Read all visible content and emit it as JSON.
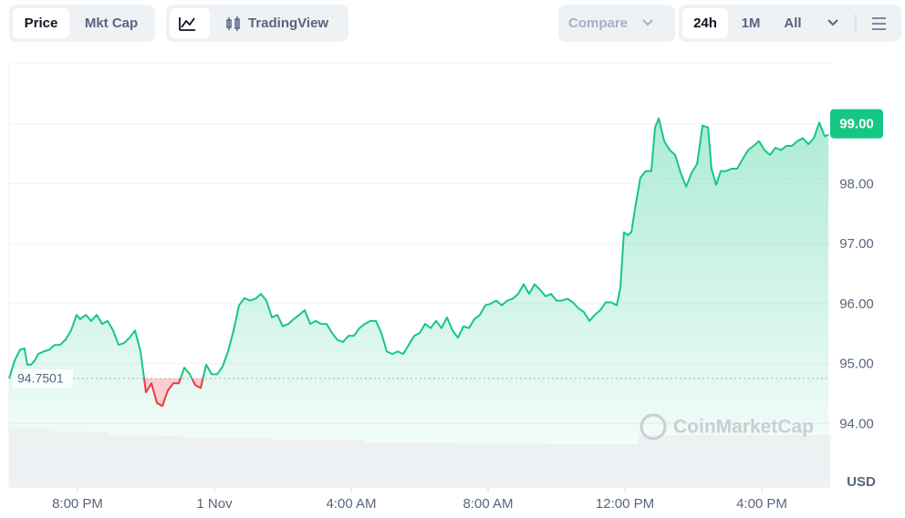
{
  "toolbar": {
    "price": "Price",
    "mkt_cap": "Mkt Cap",
    "tradingview": "TradingView",
    "compare": "Compare",
    "range_24h": "24h",
    "range_1m": "1M",
    "range_all": "All"
  },
  "chart_data": {
    "type": "line",
    "watermark": "CoinMarketCap",
    "y_unit": "USD",
    "x": [
      18.0,
      18.16,
      18.32,
      18.45,
      18.53,
      18.64,
      18.75,
      18.85,
      19.01,
      19.17,
      19.33,
      19.49,
      19.65,
      19.81,
      19.97,
      20.08,
      20.24,
      20.4,
      20.56,
      20.72,
      20.88,
      21.04,
      21.2,
      21.36,
      21.52,
      21.68,
      21.84,
      22.0,
      22.16,
      22.32,
      22.48,
      22.64,
      22.8,
      22.96,
      23.12,
      23.28,
      23.44,
      23.6,
      23.76,
      23.92,
      24.08,
      24.24,
      24.4,
      24.56,
      24.72,
      24.88,
      25.04,
      25.2,
      25.36,
      25.52,
      25.68,
      25.84,
      26.0,
      26.16,
      26.32,
      26.48,
      26.64,
      26.8,
      26.96,
      27.12,
      27.28,
      27.44,
      27.6,
      27.76,
      27.92,
      28.08,
      28.24,
      28.4,
      28.56,
      28.72,
      28.88,
      29.04,
      29.2,
      29.36,
      29.52,
      29.68,
      29.84,
      30.0,
      30.16,
      30.32,
      30.48,
      30.64,
      30.8,
      30.96,
      31.12,
      31.28,
      31.44,
      31.6,
      31.76,
      31.92,
      32.08,
      32.24,
      32.4,
      32.56,
      32.72,
      32.88,
      33.04,
      33.2,
      33.36,
      33.52,
      33.68,
      33.84,
      34.0,
      34.16,
      34.32,
      34.48,
      34.64,
      34.8,
      34.96,
      35.12,
      35.28,
      35.44,
      35.6,
      35.76,
      35.87,
      35.97,
      36.08,
      36.19,
      36.29,
      36.45,
      36.61,
      36.77,
      36.88,
      36.99,
      37.15,
      37.31,
      37.47,
      37.63,
      37.79,
      37.95,
      38.11,
      38.27,
      38.43,
      38.53,
      38.67,
      38.8,
      38.96,
      39.12,
      39.28,
      39.44,
      39.6,
      39.76,
      39.92,
      40.08,
      40.24,
      40.4,
      40.56,
      40.72,
      40.88,
      41.04,
      41.2,
      41.36,
      41.52,
      41.68,
      41.84,
      41.95
    ],
    "series": [
      {
        "name": "Price",
        "color": "#16c784",
        "down_color": "#ea3943",
        "values": [
          94.75,
          95.05,
          95.23,
          95.25,
          94.98,
          94.98,
          95.05,
          95.16,
          95.2,
          95.23,
          95.31,
          95.31,
          95.4,
          95.55,
          95.81,
          95.74,
          95.81,
          95.71,
          95.81,
          95.66,
          95.71,
          95.55,
          95.31,
          95.34,
          95.43,
          95.55,
          95.2,
          94.52,
          94.67,
          94.34,
          94.29,
          94.55,
          94.67,
          94.67,
          94.93,
          94.82,
          94.64,
          94.59,
          94.98,
          94.82,
          94.82,
          94.95,
          95.2,
          95.55,
          95.97,
          96.09,
          96.05,
          96.08,
          96.16,
          96.05,
          95.77,
          95.81,
          95.62,
          95.66,
          95.74,
          95.81,
          95.89,
          95.66,
          95.71,
          95.66,
          95.66,
          95.51,
          95.39,
          95.36,
          95.46,
          95.46,
          95.59,
          95.66,
          95.71,
          95.71,
          95.51,
          95.2,
          95.16,
          95.2,
          95.16,
          95.31,
          95.46,
          95.51,
          95.66,
          95.59,
          95.71,
          95.59,
          95.77,
          95.55,
          95.43,
          95.62,
          95.59,
          95.74,
          95.81,
          95.97,
          96.0,
          96.05,
          95.97,
          96.05,
          96.08,
          96.16,
          96.32,
          96.16,
          96.32,
          96.23,
          96.12,
          96.16,
          96.05,
          96.05,
          96.08,
          96.02,
          95.92,
          95.86,
          95.71,
          95.81,
          95.89,
          96.02,
          96.02,
          95.97,
          96.27,
          97.19,
          97.14,
          97.19,
          97.57,
          98.1,
          98.21,
          98.21,
          98.94,
          99.09,
          98.71,
          98.56,
          98.48,
          98.18,
          97.95,
          98.18,
          98.33,
          98.97,
          98.94,
          98.25,
          97.98,
          98.21,
          98.21,
          98.25,
          98.25,
          98.41,
          98.56,
          98.63,
          98.71,
          98.56,
          98.48,
          98.6,
          98.56,
          98.63,
          98.63,
          98.71,
          98.76,
          98.66,
          98.76,
          99.02,
          98.79,
          98.82
        ]
      }
    ],
    "baseline": 94.7501,
    "xlim": [
      18,
      42
    ],
    "xticks": [
      {
        "value": 20,
        "label": "8:00 PM"
      },
      {
        "value": 24,
        "label": "1 Nov"
      },
      {
        "value": 28,
        "label": "4:00 AM"
      },
      {
        "value": 32,
        "label": "8:00 AM"
      },
      {
        "value": 36,
        "label": "12:00 PM"
      },
      {
        "value": 40,
        "label": "4:00 PM"
      }
    ],
    "ylim": [
      93,
      100
    ],
    "yticks": [
      {
        "value": 94,
        "label": "94.00"
      },
      {
        "value": 95,
        "label": "95.00"
      },
      {
        "value": 96,
        "label": "96.00"
      },
      {
        "value": 97,
        "label": "97.00"
      },
      {
        "value": 98,
        "label": "98.00"
      },
      {
        "value": 99,
        "label": "99.00"
      }
    ],
    "grid": true
  }
}
